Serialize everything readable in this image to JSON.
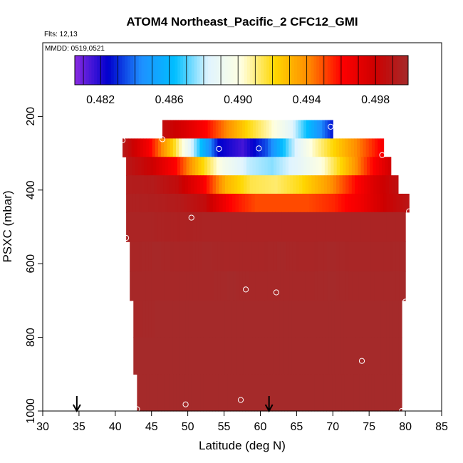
{
  "chart_data": {
    "type": "heatmap",
    "title": "ATOM4 Northeast_Pacific_2 CFC12_GMI",
    "flights_note": "Flts: 12,13",
    "date_note": "MMDD: 0519,0521",
    "xlabel": "Latitude (deg N)",
    "ylabel": "PSXC (mbar)",
    "xlim": [
      30,
      85
    ],
    "ylim": [
      1000,
      0
    ],
    "x_ticks": [
      "30",
      "35",
      "40",
      "45",
      "50",
      "55",
      "60",
      "65",
      "70",
      "75",
      "80",
      "85"
    ],
    "y_ticks": [
      "200",
      "400",
      "600",
      "800",
      "1000"
    ],
    "colorbar": {
      "range": [
        0.4805,
        0.4999
      ],
      "tick_labels": [
        "0.482",
        "0.486",
        "0.490",
        "0.494",
        "0.498"
      ],
      "tick_values": [
        0.482,
        0.486,
        0.49,
        0.494,
        0.498
      ],
      "colors": [
        "#8a2be2",
        "#0000cd",
        "#1e90ff",
        "#00bfff",
        "#e0f4ff",
        "#ffffe0",
        "#ffd700",
        "#ff8c00",
        "#ff0000",
        "#cd0000",
        "#a52a2a"
      ]
    },
    "curtain": [
      {
        "p_top": 210,
        "p_bot": 260,
        "lat_min": 46.5,
        "lat_max": 70,
        "vals": [
          0.4985,
          0.4975,
          0.496,
          0.494,
          0.492,
          0.4905,
          0.4885,
          0.4855,
          0.4825
        ]
      },
      {
        "p_top": 260,
        "p_bot": 310,
        "lat_min": 41,
        "lat_max": 77,
        "vals": [
          0.499,
          0.4965,
          0.4925,
          0.4875,
          0.4825,
          0.4815,
          0.4835,
          0.4875,
          0.4905,
          0.4925,
          0.4945,
          0.4965
        ]
      },
      {
        "p_top": 310,
        "p_bot": 360,
        "lat_min": 41.5,
        "lat_max": 78,
        "vals": [
          0.499,
          0.498,
          0.496,
          0.4925,
          0.4895,
          0.488,
          0.4875,
          0.4885,
          0.49,
          0.4925,
          0.4955,
          0.498
        ]
      },
      {
        "p_top": 360,
        "p_bot": 410,
        "lat_min": 41.5,
        "lat_max": 79,
        "vals": [
          0.4993,
          0.4992,
          0.4985,
          0.4965,
          0.493,
          0.4915,
          0.4912,
          0.492,
          0.4935,
          0.4955,
          0.4975,
          0.4988
        ]
      },
      {
        "p_top": 410,
        "p_bot": 460,
        "lat_min": 41.5,
        "lat_max": 80.5,
        "vals": [
          0.4995,
          0.4994,
          0.4992,
          0.4985,
          0.496,
          0.495,
          0.495,
          0.495,
          0.4955,
          0.4965,
          0.498,
          0.499
        ]
      },
      {
        "p_top": 460,
        "p_bot": 540,
        "lat_min": 41.5,
        "lat_max": 80,
        "vals": [
          0.4996,
          0.4996,
          0.4995,
          0.4996,
          0.4996,
          0.4996,
          0.4996,
          0.4996,
          0.4996,
          0.4996,
          0.4996,
          0.4996
        ]
      },
      {
        "p_top": 540,
        "p_bot": 620,
        "lat_min": 42,
        "lat_max": 80,
        "vals": [
          0.4997,
          0.4998,
          0.4997,
          0.4998,
          0.4997,
          0.4997,
          0.4998,
          0.4997,
          0.4998,
          0.4997,
          0.4997,
          0.4998
        ]
      },
      {
        "p_top": 620,
        "p_bot": 700,
        "lat_min": 42,
        "lat_max": 80,
        "vals": [
          0.4998,
          0.4998,
          0.4998,
          0.4998,
          0.4999,
          0.4998,
          0.4998,
          0.4998,
          0.4999,
          0.4998,
          0.4998,
          0.4999
        ]
      },
      {
        "p_top": 700,
        "p_bot": 800,
        "lat_min": 42.5,
        "lat_max": 79.5,
        "vals": [
          0.4998,
          0.4999,
          0.4999,
          0.4999,
          0.4999,
          0.4999,
          0.4999,
          0.4999,
          0.4999,
          0.4999,
          0.4999,
          0.4999
        ]
      },
      {
        "p_top": 800,
        "p_bot": 900,
        "lat_min": 42.5,
        "lat_max": 79.5,
        "vals": [
          0.4999,
          0.4999,
          0.4999,
          0.4999,
          0.4999,
          0.4999,
          0.4999,
          0.4999,
          0.4999,
          0.4999,
          0.4999,
          0.4999
        ]
      },
      {
        "p_top": 900,
        "p_bot": 1000,
        "lat_min": 43,
        "lat_max": 79.5,
        "vals": [
          0.4999,
          0.4999,
          0.4999,
          0.4999,
          0.4999,
          0.4999,
          0.4999,
          0.4999,
          0.4999,
          0.4999,
          0.4999,
          0.4999
        ]
      }
    ],
    "points": [
      {
        "lat": 41,
        "p": 265
      },
      {
        "lat": 46.5,
        "p": 262
      },
      {
        "lat": 54.3,
        "p": 288
      },
      {
        "lat": 59.8,
        "p": 287
      },
      {
        "lat": 69.7,
        "p": 228
      },
      {
        "lat": 76.8,
        "p": 305
      },
      {
        "lat": 41.5,
        "p": 530
      },
      {
        "lat": 50.5,
        "p": 475
      },
      {
        "lat": 80.5,
        "p": 458
      },
      {
        "lat": 58,
        "p": 670
      },
      {
        "lat": 62.2,
        "p": 678
      },
      {
        "lat": 80,
        "p": 703
      },
      {
        "lat": 74,
        "p": 864
      },
      {
        "lat": 57.3,
        "p": 970
      },
      {
        "lat": 49.7,
        "p": 982
      },
      {
        "lat": 43,
        "p": 995
      },
      {
        "lat": 79.5,
        "p": 1000
      }
    ],
    "arrows": [
      {
        "lat": 34.7
      },
      {
        "lat": 61.2
      }
    ]
  }
}
